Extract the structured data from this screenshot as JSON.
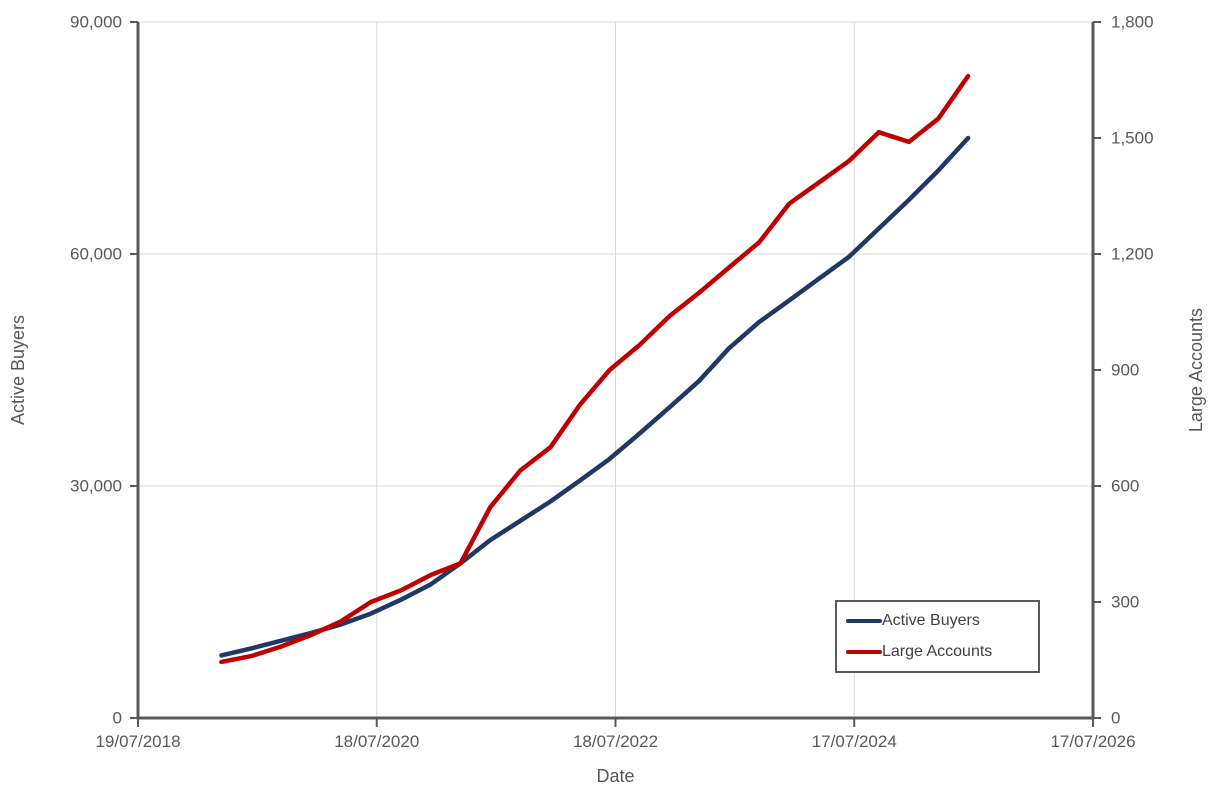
{
  "colors": {
    "axis": "#595959",
    "grid": "#D9D9D9",
    "tick_text": "#595959",
    "legend_border": "#595959",
    "legend_text": "#404040",
    "active_buyers": "#1F3864",
    "large_accounts": "#C00000"
  },
  "chart_data": {
    "type": "line",
    "title": "",
    "xlabel": "Date",
    "ylabel_left": "Active Buyers",
    "ylabel_right": "Large Accounts",
    "grid": "on",
    "legend_position": "inside-bottom-right",
    "x_domain": [
      "2018-07-19",
      "2026-07-17"
    ],
    "x_ticks": [
      {
        "date": "2018-07-19",
        "label": "19/07/2018"
      },
      {
        "date": "2020-07-18",
        "label": "18/07/2020"
      },
      {
        "date": "2022-07-18",
        "label": "18/07/2022"
      },
      {
        "date": "2024-07-17",
        "label": "17/07/2024"
      },
      {
        "date": "2026-07-17",
        "label": "17/07/2026"
      }
    ],
    "y_left": {
      "min": 0,
      "max": 90000,
      "tick_step": 30000,
      "ticks": [
        {
          "value": 0,
          "label": "0"
        },
        {
          "value": 30000,
          "label": "30,000"
        },
        {
          "value": 60000,
          "label": "60,000"
        },
        {
          "value": 90000,
          "label": "90,000"
        }
      ]
    },
    "y_right": {
      "min": 0,
      "max": 1800,
      "tick_step": 300,
      "ticks": [
        {
          "value": 0,
          "label": "0"
        },
        {
          "value": 300,
          "label": "300"
        },
        {
          "value": 600,
          "label": "600"
        },
        {
          "value": 900,
          "label": "900"
        },
        {
          "value": 1200,
          "label": "1,200"
        },
        {
          "value": 1500,
          "label": "1,500"
        },
        {
          "value": 1800,
          "label": "1,800"
        }
      ]
    },
    "gridline_values_left": [
      30000,
      60000,
      90000
    ],
    "gridline_dates": [
      "2020-07-18",
      "2022-07-18",
      "2024-07-17"
    ],
    "dates": [
      "2019-03-31",
      "2019-06-30",
      "2019-09-30",
      "2019-12-31",
      "2020-03-31",
      "2020-06-30",
      "2020-09-30",
      "2020-12-31",
      "2021-03-31",
      "2021-06-30",
      "2021-09-30",
      "2021-12-31",
      "2022-03-31",
      "2022-06-30",
      "2022-09-30",
      "2022-12-31",
      "2023-03-31",
      "2023-06-30",
      "2023-09-30",
      "2023-12-31",
      "2024-03-31",
      "2024-06-30",
      "2024-09-30",
      "2024-12-31",
      "2025-03-31",
      "2025-06-30"
    ],
    "series": [
      {
        "name": "Active Buyers",
        "axis": "left",
        "color": "#1F3864",
        "values": [
          8100,
          9000,
          10000,
          11000,
          12100,
          13500,
          15300,
          17300,
          20000,
          23000,
          25500,
          28000,
          30700,
          33500,
          36800,
          40200,
          43600,
          47800,
          51200,
          54000,
          56800,
          59600,
          63300,
          67000,
          70800,
          75000
        ]
      },
      {
        "name": "Large Accounts",
        "axis": "right",
        "color": "#C00000",
        "values": [
          145,
          160,
          185,
          215,
          250,
          300,
          330,
          370,
          400,
          545,
          640,
          700,
          810,
          900,
          965,
          1040,
          1100,
          1165,
          1230,
          1330,
          1385,
          1440,
          1515,
          1490,
          1550,
          1660
        ]
      }
    ]
  }
}
